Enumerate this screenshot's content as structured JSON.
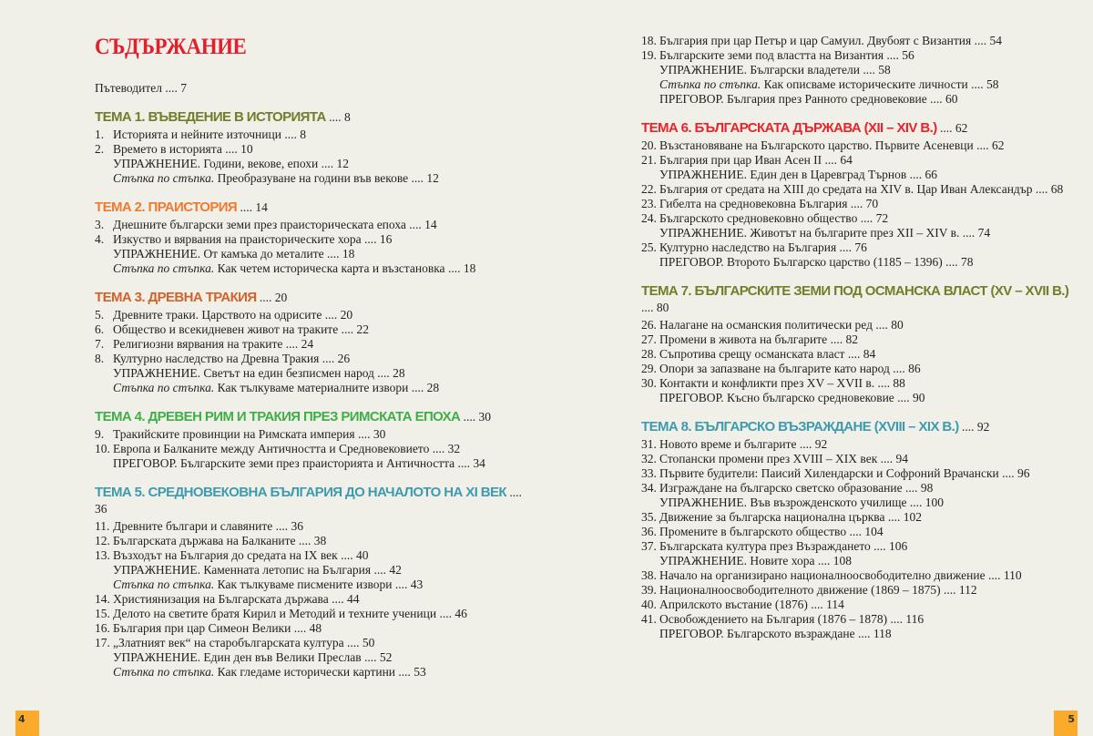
{
  "title": "СЪДЪРЖАНИЕ",
  "guide": {
    "text": "Пътеводител",
    "page": "7"
  },
  "separator": " .... ",
  "step_label": "Стъпка по стъпка.",
  "page_numbers": {
    "left": "4",
    "right": "5"
  },
  "colors": {
    "title": "#e31e2d",
    "page_box": "#fbab2c",
    "background": "#f1f0e8"
  },
  "columns": {
    "left": [
      {
        "heading": {
          "title": "ТЕМА 1. ВЪВЕДЕНИЕ В ИСТОРИЯТА",
          "page": "8",
          "color": "#6f7f2a"
        },
        "entries": [
          {
            "num": "1.",
            "text": "Историята и нейните източници",
            "page": "8"
          },
          {
            "num": "2.",
            "text": "Времето в историята",
            "page": "10"
          },
          {
            "num": "",
            "text": "УПРАЖНЕНИЕ. Години, векове, епохи",
            "page": "12"
          },
          {
            "num": "",
            "step": true,
            "text": "Преобразуване на години във векове",
            "page": "12"
          }
        ]
      },
      {
        "heading": {
          "title": "ТЕМА 2. ПРАИСТОРИЯ",
          "page": "14",
          "color": "#f07a30"
        },
        "entries": [
          {
            "num": "3.",
            "text": "Днешните български земи през праисторическата епоха",
            "page": "14"
          },
          {
            "num": "4.",
            "text": "Изкуство и вярвания на праисторическите хора",
            "page": "16"
          },
          {
            "num": "",
            "text": "УПРАЖНЕНИЕ. От камъка до металите",
            "page": "18"
          },
          {
            "num": "",
            "step": true,
            "text": "Как четем историческа карта и възстановка",
            "page": "18"
          }
        ]
      },
      {
        "heading": {
          "title": "ТЕМА 3. ДРЕВНА ТРАКИЯ",
          "page": "20",
          "color": "#d2622a"
        },
        "entries": [
          {
            "num": "5.",
            "text": "Древните траки. Царството на одрисите",
            "page": "20"
          },
          {
            "num": "6.",
            "text": "Общество и всекидневен живот на траките",
            "page": "22"
          },
          {
            "num": "7.",
            "text": "Религиозни вярвания на траките",
            "page": "24"
          },
          {
            "num": "8.",
            "text": "Културно наследство на Древна Тракия",
            "page": "26"
          },
          {
            "num": "",
            "text": "УПРАЖНЕНИЕ. Светът на един безписмен народ",
            "page": "28"
          },
          {
            "num": "",
            "step": true,
            "text": "Как тълкуваме материалните извори",
            "page": "28"
          }
        ]
      },
      {
        "heading": {
          "title": "ТЕМА 4. ДРЕВЕН РИМ И ТРАКИЯ ПРЕЗ РИМСКАТА ЕПОХА",
          "page": "30",
          "color": "#3fae49"
        },
        "entries": [
          {
            "num": "9.",
            "text": "Тракийските провинции на Римската империя",
            "page": "30"
          },
          {
            "num": "10.",
            "text": "Европа и Балканите между Античността и Средновековието",
            "page": "32"
          },
          {
            "num": "",
            "text": "ПРЕГОВОР. Българските земи през праисторията и Античността",
            "page": "34"
          }
        ]
      },
      {
        "heading": {
          "title": "ТЕМА 5. СРЕДНОВЕКОВНА БЪЛГАРИЯ ДО НАЧАЛОТО НА XI ВЕК",
          "page": "36",
          "color": "#3d9bb0"
        },
        "entries": [
          {
            "num": "11.",
            "text": "Древните българи и славяните",
            "page": "36"
          },
          {
            "num": "12.",
            "text": "Българската държава на Балканите",
            "page": "38"
          },
          {
            "num": "13.",
            "text": "Възходът на България до средата на IX век",
            "page": "40"
          },
          {
            "num": "",
            "text": "УПРАЖНЕНИЕ. Каменната летопис на България",
            "page": "42"
          },
          {
            "num": "",
            "step": true,
            "text": "Как тълкуваме писмените извори",
            "page": "43"
          },
          {
            "num": "14.",
            "text": "Християнизация на Българската държава",
            "page": "44"
          },
          {
            "num": "15.",
            "text": "Делото на светите братя Кирил и Методий и техните ученици",
            "page": "46"
          },
          {
            "num": "16.",
            "text": "България при цар Симеон Велики",
            "page": "48"
          },
          {
            "num": "17.",
            "text": "„Златният век“ на старобългарската култура",
            "page": "50"
          },
          {
            "num": "",
            "text": "УПРАЖНЕНИЕ. Един ден във Велики Преслав",
            "page": "52"
          },
          {
            "num": "",
            "step": true,
            "text": "Как гледаме исторически картини",
            "page": "53"
          }
        ]
      }
    ],
    "right": [
      {
        "entries": [
          {
            "num": "18.",
            "text": "България при цар Петър и цар Самуил. Двубоят с Византия",
            "page": "54"
          },
          {
            "num": "19.",
            "text": "Българските земи под властта на Византия",
            "page": "56"
          },
          {
            "num": "",
            "text": "УПРАЖНЕНИЕ. Български владетели",
            "page": "58"
          },
          {
            "num": "",
            "step": true,
            "text": "Как описваме историческите личности",
            "page": "58"
          },
          {
            "num": "",
            "text": "ПРЕГОВОР. България през Ранното средновековие",
            "page": "60"
          }
        ]
      },
      {
        "heading": {
          "title": "ТЕМА 6. БЪЛГАРСКАТА  ДЪРЖАВА  (XII – XIV В.)",
          "page": "62",
          "color": "#e8232a"
        },
        "entries": [
          {
            "num": "20.",
            "text": "Възстановяване на Българското царство. Първите Асеневци",
            "page": "62"
          },
          {
            "num": "21.",
            "text": "България при цар Иван Асен II",
            "page": "64"
          },
          {
            "num": "",
            "text": "УПРАЖНЕНИЕ. Един ден в Царевград Търнов",
            "page": "66"
          },
          {
            "num": "22.",
            "text": "България от средата на XIII до средата на XIV в. Цар Иван Александър",
            "page": "68"
          },
          {
            "num": "23.",
            "text": "Гибелта на средновековна България",
            "page": "70"
          },
          {
            "num": "24.",
            "text": "Българското средновековно общество",
            "page": "72"
          },
          {
            "num": "",
            "text": "УПРАЖНЕНИЕ. Животът на българите през XII – XIV в.",
            "page": "74"
          },
          {
            "num": "25.",
            "text": "Културно наследство на България",
            "page": "76"
          },
          {
            "num": "",
            "text": "ПРЕГОВОР. Второто Българско царство (1185 – 1396)",
            "page": "78"
          }
        ]
      },
      {
        "heading": {
          "title": "ТЕМА 7. БЪЛГАРСКИТЕ ЗЕМИ ПОД ОСМАНСКА ВЛАСТ (XV – XVII В.)",
          "page": "80",
          "color": "#6f7f2a"
        },
        "entries": [
          {
            "num": "26.",
            "text": "Налагане на османския политически ред",
            "page": "80"
          },
          {
            "num": "27.",
            "text": "Промени в живота на българите",
            "page": "82"
          },
          {
            "num": "28.",
            "text": "Съпротива срещу османската власт",
            "page": "84"
          },
          {
            "num": "29.",
            "text": "Опори за запазване на българите като народ",
            "page": "86"
          },
          {
            "num": "30.",
            "text": "Контакти и конфликти през XV – XVII в.",
            "page": "88"
          },
          {
            "num": "",
            "text": "ПРЕГОВОР. Късно българско средновековие",
            "page": "90"
          }
        ]
      },
      {
        "heading": {
          "title": "ТЕМА 8. БЪЛГАРСКО ВЪЗРАЖДАНЕ (XVIII – XIX В.)",
          "page": "92",
          "color": "#3d9bb0"
        },
        "entries": [
          {
            "num": "31.",
            "text": "Новото време и българите",
            "page": "92"
          },
          {
            "num": "32.",
            "text": "Стопански промени през XVIII – XIX век",
            "page": "94"
          },
          {
            "num": "33.",
            "text": "Първите будители: Паисий Хилендарски и Софроний Врачански",
            "page": "96"
          },
          {
            "num": "34.",
            "text": "Изграждане на българско светско образование",
            "page": "98"
          },
          {
            "num": "",
            "text": "УПРАЖНЕНИЕ. Във възрожденското училище",
            "page": "100"
          },
          {
            "num": "35.",
            "text": "Движение за българска национална църква",
            "page": "102"
          },
          {
            "num": "36.",
            "text": "Промените в българското общество",
            "page": "104"
          },
          {
            "num": "37.",
            "text": "Българската култура през Възраждането",
            "page": "106"
          },
          {
            "num": "",
            "text": "УПРАЖНЕНИЕ. Новите хора",
            "page": "108"
          },
          {
            "num": "38.",
            "text": "Начало на организирано националноосвободително движение",
            "page": "110"
          },
          {
            "num": "39.",
            "text": "Националноосвободителното движение (1869 – 1875)",
            "page": "112"
          },
          {
            "num": "40.",
            "text": "Априлското въстание (1876)",
            "page": "114"
          },
          {
            "num": "41.",
            "text": "Освобождението на България (1876 – 1878)",
            "page": "116"
          },
          {
            "num": "",
            "text": "ПРЕГОВОР. Българското възраждане",
            "page": "118"
          }
        ]
      }
    ]
  }
}
